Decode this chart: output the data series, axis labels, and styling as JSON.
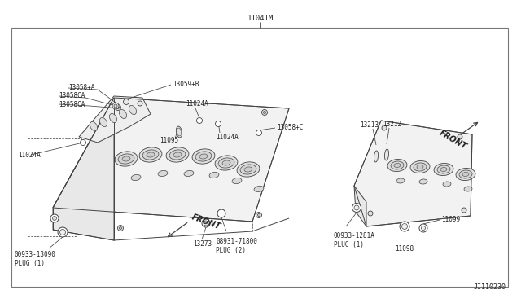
{
  "bg_color": "#ffffff",
  "border_color": "#666666",
  "line_color": "#444444",
  "text_color": "#222222",
  "title": "11041M",
  "diagram_id": "JI110230",
  "fs_label": 5.5,
  "fs_title": 6.5,
  "labels": {
    "lbl_13058A": "13058+A",
    "lbl_13059B": "13059+B",
    "lbl_13058CA1": "13058CA",
    "lbl_13058CA2": "13058CA",
    "lbl_11024A_l": "11024A",
    "lbl_11024A_m": "11024A",
    "lbl_11024A_r": "11024A",
    "lbl_11095": "11095",
    "lbl_13058C": "13058+C",
    "lbl_00933_l": "00933-13090\nPLUG (1)",
    "lbl_08931": "08931-71800\nPLUG (2)",
    "lbl_13273": "13273",
    "lbl_13213": "13213",
    "lbl_13212": "13212",
    "lbl_00933_r": "00933-1281A\nPLUG (1)",
    "lbl_11098": "11098",
    "lbl_11099": "11099",
    "front_l": "FRONT",
    "front_r": "FRONT"
  }
}
